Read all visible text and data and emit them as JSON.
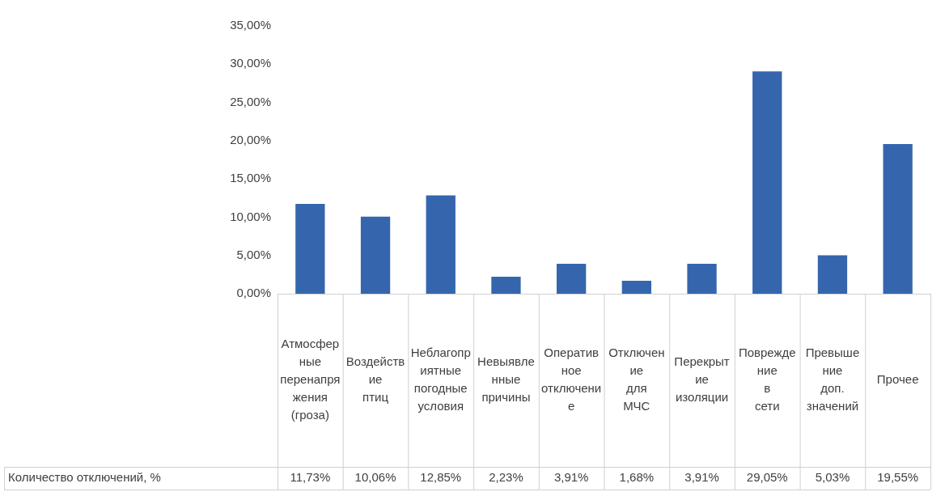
{
  "chart_data": {
    "type": "bar",
    "categories": [
      "Атмосферные перенапряжения (гроза)",
      "Воздействие птиц",
      "Неблагоприятные погодные условия",
      "Невыявленные причины",
      "Оперативное отключение",
      "Отключение для МЧС",
      "Перекрытие изоляции",
      "Повреждение в сети",
      "Превышение доп. значений",
      "Прочее"
    ],
    "series": [
      {
        "name": "Количество отключений, %",
        "color": "#3566ad",
        "values": [
          11.73,
          10.06,
          12.85,
          2.23,
          3.91,
          1.68,
          3.91,
          29.05,
          5.03,
          19.55
        ],
        "value_labels": [
          "11,73%",
          "10,06%",
          "12,85%",
          "2,23%",
          "3,91%",
          "1,68%",
          "3,91%",
          "29,05%",
          "5,03%",
          "19,55%"
        ]
      }
    ],
    "ylim": [
      0,
      35
    ],
    "yticks": [
      {
        "value": 0,
        "label": "0,00%"
      },
      {
        "value": 5,
        "label": "5,00%"
      },
      {
        "value": 10,
        "label": "10,00%"
      },
      {
        "value": 15,
        "label": "15,00%"
      },
      {
        "value": 20,
        "label": "20,00%"
      },
      {
        "value": 25,
        "label": "25,00%"
      },
      {
        "value": 30,
        "label": "30,00%"
      },
      {
        "value": 35,
        "label": "35,00%"
      }
    ],
    "grid": false,
    "legend": false
  }
}
